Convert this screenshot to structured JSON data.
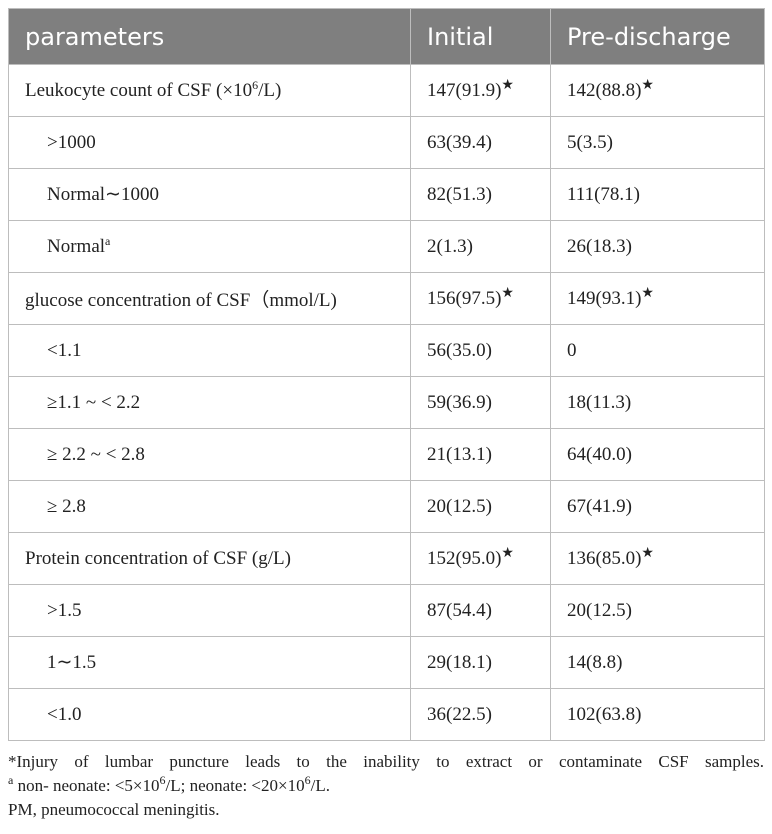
{
  "table": {
    "header": [
      "parameters",
      "Initial",
      "Pre-discharge"
    ],
    "rows": [
      {
        "indent": false,
        "cells": [
          [
            "Leukocyte count of CSF (×10",
            {
              "sup": "6"
            },
            "/L)"
          ],
          [
            "147(91.9)",
            {
              "sup": "★"
            }
          ],
          [
            "142(88.8)",
            {
              "sup": "★"
            }
          ]
        ]
      },
      {
        "indent": true,
        "cells": [
          [
            ">1000"
          ],
          [
            "63(39.4)"
          ],
          [
            "5(3.5)"
          ]
        ]
      },
      {
        "indent": true,
        "cells": [
          [
            "Normal∼1000"
          ],
          [
            "82(51.3)"
          ],
          [
            "111(78.1)"
          ]
        ]
      },
      {
        "indent": true,
        "cells": [
          [
            "Normal",
            {
              "sup": "a"
            }
          ],
          [
            "2(1.3)"
          ],
          [
            "26(18.3)"
          ]
        ]
      },
      {
        "indent": false,
        "cells": [
          [
            "glucose concentration of CSF（mmol/L)"
          ],
          [
            "156(97.5)",
            {
              "sup": "★"
            }
          ],
          [
            "149(93.1)",
            {
              "sup": "★"
            }
          ]
        ]
      },
      {
        "indent": true,
        "cells": [
          [
            "<1.1"
          ],
          [
            "56(35.0)"
          ],
          [
            "0"
          ]
        ]
      },
      {
        "indent": true,
        "cells": [
          [
            "≥1.1 ~ < 2.2"
          ],
          [
            "59(36.9)"
          ],
          [
            "18(11.3)"
          ]
        ]
      },
      {
        "indent": true,
        "cells": [
          [
            "≥ 2.2 ~ < 2.8"
          ],
          [
            "21(13.1)"
          ],
          [
            "64(40.0)"
          ]
        ]
      },
      {
        "indent": true,
        "cells": [
          [
            "≥ 2.8"
          ],
          [
            "20(12.5)"
          ],
          [
            "67(41.9)"
          ]
        ]
      },
      {
        "indent": false,
        "cells": [
          [
            "Protein concentration of CSF (g/L)"
          ],
          [
            "152(95.0)",
            {
              "sup": "★"
            }
          ],
          [
            "136(85.0)",
            {
              "sup": "★"
            }
          ]
        ]
      },
      {
        "indent": true,
        "cells": [
          [
            ">1.5"
          ],
          [
            "87(54.4)"
          ],
          [
            "20(12.5)"
          ]
        ]
      },
      {
        "indent": true,
        "cells": [
          [
            "1∼1.5"
          ],
          [
            "29(18.1)"
          ],
          [
            "14(8.8)"
          ]
        ]
      },
      {
        "indent": true,
        "cells": [
          [
            "<1.0"
          ],
          [
            "36(22.5)"
          ],
          [
            "102(63.8)"
          ]
        ]
      }
    ]
  },
  "footnotes": [
    [
      "*Injury of lumbar puncture leads to the inability to extract or contaminate CSF samples."
    ],
    [
      {
        "sup": "a"
      },
      " non- neonate: <5×10",
      {
        "sup": "6"
      },
      "/L; neonate: <20×10",
      {
        "sup": "6"
      },
      "/L."
    ],
    [
      "PM, pneumococcal meningitis."
    ]
  ]
}
